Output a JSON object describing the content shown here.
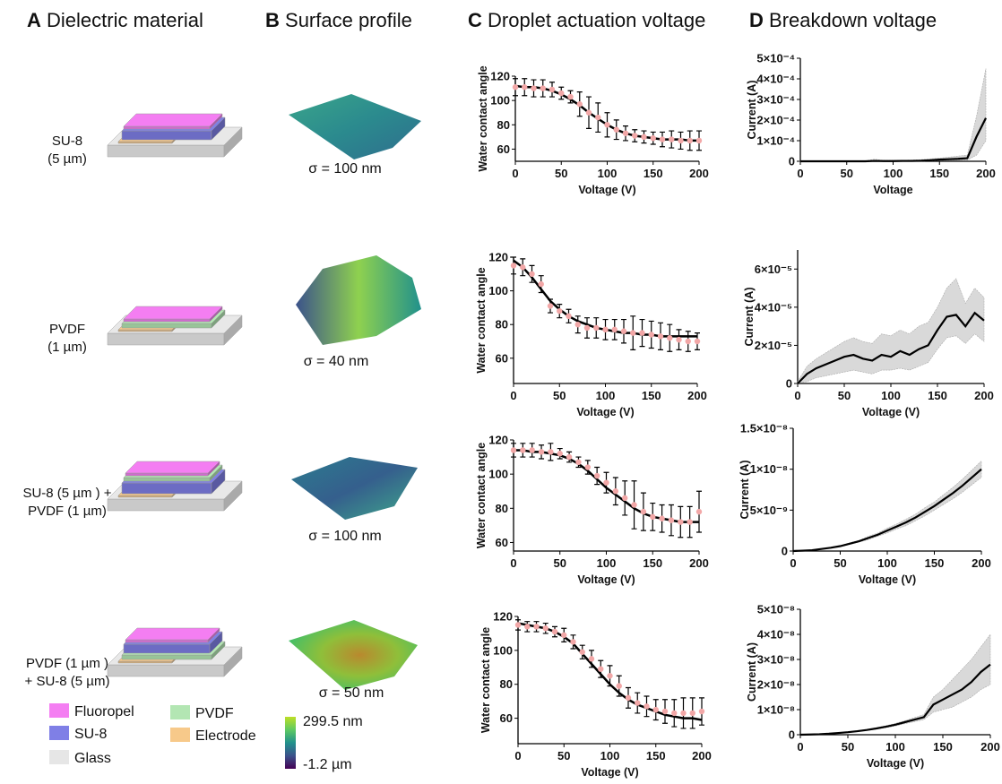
{
  "panels": [
    {
      "letter": "A",
      "title": "Dielectric material"
    },
    {
      "letter": "B",
      "title": "Surface profile"
    },
    {
      "letter": "C",
      "title": "Droplet actuation voltage"
    },
    {
      "letter": "D",
      "title": "Breakdown voltage"
    }
  ],
  "materials": [
    [
      "SU-8",
      "(5 µm)"
    ],
    [
      "PVDF",
      "(1 µm)"
    ],
    [
      "SU-8 (5 µm ) +",
      "PVDF  (1 µm)"
    ],
    [
      "PVDF (1 µm )",
      "+ SU-8 (5 µm)"
    ]
  ],
  "roughness": [
    "σ = 100 nm",
    "σ = 40 nm",
    "σ = 100 nm",
    "σ = 50 nm"
  ],
  "legend": [
    {
      "name": "Fluoropel",
      "color": "#f47ef2"
    },
    {
      "name": "SU-8",
      "color": "#7f7fe6"
    },
    {
      "name": "Glass",
      "color": "#e6e6e6"
    },
    {
      "name": "PVDF",
      "color": "#b3e6b3"
    },
    {
      "name": "Electrode",
      "color": "#f7c98a"
    }
  ],
  "colorbar": {
    "max": "299.5 nm",
    "min": "-1.2 µm"
  },
  "chart_data": [
    {
      "type": "scatter",
      "ylabel": "Water contact angle",
      "xlabel": "Voltage (V)",
      "color": "#f2a7a7",
      "fit_color": "#000000",
      "x": [
        0,
        10,
        20,
        30,
        40,
        50,
        60,
        70,
        80,
        90,
        100,
        110,
        120,
        130,
        140,
        150,
        160,
        170,
        180,
        190,
        200
      ],
      "values": [
        111,
        111,
        110,
        110,
        109,
        106,
        103,
        97,
        90,
        86,
        80,
        76,
        73,
        71,
        70,
        69,
        68,
        68,
        67,
        67,
        67
      ],
      "errors": [
        7,
        7,
        7,
        7,
        6,
        5,
        5,
        10,
        13,
        12,
        10,
        8,
        6,
        5,
        5,
        5,
        6,
        7,
        7,
        8,
        8
      ],
      "fit": [
        112,
        111,
        111,
        110,
        108,
        105,
        101,
        96,
        90,
        85,
        80,
        76,
        73,
        71,
        70,
        69,
        68,
        68,
        68,
        67,
        67
      ],
      "xlim": [
        0,
        200
      ],
      "xticks": [
        0,
        50,
        100,
        150,
        200
      ],
      "ylim": [
        50,
        120
      ],
      "yticks": [
        60,
        80,
        100,
        120
      ]
    },
    {
      "type": "scatter",
      "ylabel": "Water contact angle",
      "xlabel": "Voltage (V)",
      "color": "#f2a7a7",
      "fit_color": "#000000",
      "x": [
        0,
        10,
        20,
        30,
        40,
        50,
        60,
        70,
        80,
        90,
        100,
        110,
        120,
        130,
        140,
        150,
        160,
        170,
        180,
        190,
        200
      ],
      "values": [
        115,
        114,
        110,
        104,
        91,
        88,
        85,
        80,
        78,
        78,
        77,
        77,
        76,
        75,
        75,
        74,
        73,
        72,
        71,
        70,
        70
      ],
      "errors": [
        5,
        5,
        5,
        5,
        4,
        4,
        4,
        5,
        6,
        6,
        6,
        6,
        7,
        10,
        8,
        8,
        8,
        8,
        6,
        6,
        5
      ],
      "fit": [
        118,
        114,
        108,
        101,
        94,
        89,
        85,
        82,
        80,
        78,
        77,
        76,
        75,
        75,
        74,
        74,
        73,
        73,
        73,
        73,
        73
      ],
      "xlim": [
        0,
        200
      ],
      "xticks": [
        0,
        50,
        100,
        150,
        200
      ],
      "ylim": [
        45,
        120
      ],
      "yticks": [
        60,
        80,
        100,
        120
      ]
    },
    {
      "type": "scatter",
      "ylabel": "Water contact angle",
      "xlabel": "Voltage (V)",
      "color": "#f2a7a7",
      "fit_color": "#000000",
      "x": [
        0,
        10,
        20,
        30,
        40,
        50,
        60,
        70,
        80,
        90,
        100,
        110,
        120,
        130,
        140,
        150,
        160,
        170,
        180,
        190,
        200
      ],
      "values": [
        114,
        114,
        114,
        113,
        113,
        112,
        110,
        107,
        104,
        99,
        95,
        90,
        86,
        82,
        78,
        75,
        74,
        73,
        72,
        72,
        78
      ],
      "errors": [
        4,
        4,
        4,
        4,
        5,
        3,
        3,
        3,
        4,
        5,
        6,
        8,
        10,
        14,
        11,
        8,
        8,
        9,
        9,
        9,
        12
      ],
      "fit": [
        114,
        114,
        113,
        113,
        112,
        111,
        109,
        106,
        102,
        97,
        92,
        88,
        84,
        80,
        77,
        75,
        74,
        73,
        72,
        72,
        72
      ],
      "xlim": [
        0,
        200
      ],
      "xticks": [
        0,
        50,
        100,
        150,
        200
      ],
      "ylim": [
        55,
        120
      ],
      "yticks": [
        60,
        80,
        100,
        120
      ]
    },
    {
      "type": "scatter",
      "ylabel": "Water contact angle",
      "xlabel": "Voltage (V)",
      "color": "#f2a7a7",
      "fit_color": "#000000",
      "x": [
        0,
        10,
        20,
        30,
        40,
        50,
        60,
        70,
        80,
        90,
        100,
        110,
        120,
        130,
        140,
        150,
        160,
        170,
        180,
        190,
        200
      ],
      "values": [
        115,
        114,
        114,
        113,
        111,
        109,
        105,
        99,
        95,
        89,
        85,
        79,
        72,
        69,
        67,
        65,
        64,
        63,
        63,
        63,
        64
      ],
      "errors": [
        3,
        3,
        3,
        3,
        3,
        4,
        4,
        4,
        5,
        5,
        6,
        6,
        6,
        6,
        6,
        6,
        7,
        8,
        9,
        9,
        8
      ],
      "fit": [
        116,
        115,
        114,
        113,
        111,
        108,
        104,
        98,
        92,
        86,
        80,
        75,
        71,
        68,
        66,
        64,
        62,
        61,
        60,
        60,
        59
      ],
      "xlim": [
        0,
        200
      ],
      "xticks": [
        0,
        50,
        100,
        150,
        200
      ],
      "ylim": [
        45,
        120
      ],
      "yticks": [
        60,
        80,
        100,
        120
      ]
    },
    {
      "type": "line",
      "ylabel": "Current (A)",
      "xlabel": "Voltage",
      "color": "#000000",
      "band_color": "#d9d9d9",
      "x": [
        0,
        10,
        20,
        30,
        40,
        50,
        60,
        70,
        80,
        90,
        100,
        110,
        120,
        130,
        140,
        150,
        160,
        170,
        180,
        190,
        200
      ],
      "values": [
        0,
        0,
        0,
        0,
        0,
        0,
        0,
        0,
        2e-06,
        1e-06,
        1e-06,
        2e-06,
        2e-06,
        3e-06,
        5e-06,
        8e-06,
        1e-05,
        1.2e-05,
        1.5e-05,
        0.00012,
        0.00021
      ],
      "band_lower": [
        0,
        0,
        0,
        0,
        0,
        0,
        0,
        0,
        0,
        0,
        0,
        0,
        0,
        0,
        2e-06,
        3e-06,
        4e-06,
        5e-06,
        6e-06,
        3e-05,
        0.0001
      ],
      "band_upper": [
        2e-06,
        2e-06,
        2e-06,
        2e-06,
        2e-06,
        2e-06,
        2e-06,
        2e-06,
        1e-05,
        4e-06,
        4e-06,
        5e-06,
        6e-06,
        8e-06,
        1.2e-05,
        1.5e-05,
        2e-05,
        2.5e-05,
        3e-05,
        0.00022,
        0.00045
      ],
      "xlim": [
        0,
        200
      ],
      "xticks": [
        0,
        50,
        100,
        150,
        200
      ],
      "ylim": [
        0,
        0.0005
      ],
      "yticks": [
        0,
        {
          "value": 0.0001,
          "label": "1×10⁻⁴"
        },
        {
          "value": 0.0002,
          "label": "2×10⁻⁴"
        },
        {
          "value": 0.0003,
          "label": "3×10⁻⁴"
        },
        {
          "value": 0.0004,
          "label": "4×10⁻⁴"
        },
        {
          "value": 0.0005,
          "label": "5×10⁻⁴"
        }
      ]
    },
    {
      "type": "line",
      "ylabel": "Current (A)",
      "xlabel": "Voltage (V)",
      "color": "#000000",
      "band_color": "#d9d9d9",
      "x": [
        0,
        10,
        20,
        30,
        40,
        50,
        60,
        70,
        80,
        90,
        100,
        110,
        120,
        130,
        140,
        150,
        160,
        170,
        180,
        190,
        200
      ],
      "values": [
        0,
        5e-06,
        8e-06,
        1e-05,
        1.2e-05,
        1.4e-05,
        1.5e-05,
        1.3e-05,
        1.2e-05,
        1.5e-05,
        1.4e-05,
        1.7e-05,
        1.5e-05,
        1.8e-05,
        2e-05,
        2.8e-05,
        3.5e-05,
        3.6e-05,
        3e-05,
        3.7e-05,
        3.3e-05
      ],
      "band_lower": [
        0,
        1e-06,
        3e-06,
        4e-06,
        5e-06,
        6e-06,
        7e-06,
        6e-06,
        5e-06,
        7e-06,
        7e-06,
        8e-06,
        7e-06,
        9e-06,
        1.1e-05,
        1.8e-05,
        2.4e-05,
        2.5e-05,
        2.1e-05,
        2.6e-05,
        2.2e-05
      ],
      "band_upper": [
        1e-06,
        9e-06,
        1.3e-05,
        1.6e-05,
        1.9e-05,
        2.2e-05,
        2.4e-05,
        2.2e-05,
        2.1e-05,
        2.6e-05,
        2.5e-05,
        2.8e-05,
        2.6e-05,
        3e-05,
        3.2e-05,
        4e-05,
        5e-05,
        5.5e-05,
        4.2e-05,
        5e-05,
        4.5e-05
      ],
      "xlim": [
        0,
        200
      ],
      "xticks": [
        0,
        50,
        100,
        150,
        200
      ],
      "ylim": [
        0,
        7e-05
      ],
      "yticks": [
        0,
        {
          "value": 2e-05,
          "label": "2×10⁻⁵"
        },
        {
          "value": 4e-05,
          "label": "4×10⁻⁵"
        },
        {
          "value": 6e-05,
          "label": "6×10⁻⁵"
        }
      ]
    },
    {
      "type": "line",
      "ylabel": "Current (A)",
      "xlabel": "Voltage (V)",
      "color": "#000000",
      "band_color": "#d9d9d9",
      "x": [
        0,
        10,
        20,
        30,
        40,
        50,
        60,
        70,
        80,
        90,
        100,
        110,
        120,
        130,
        140,
        150,
        160,
        170,
        180,
        190,
        200
      ],
      "values": [
        0,
        5e-11,
        1e-10,
        2.5e-10,
        4e-10,
        6e-10,
        9e-10,
        1.2e-09,
        1.6e-09,
        2e-09,
        2.5e-09,
        3e-09,
        3.5e-09,
        4.1e-09,
        4.8e-09,
        5.5e-09,
        6.3e-09,
        7.1e-09,
        8e-09,
        9e-09,
        1e-08
      ],
      "band_lower": [
        0,
        4e-11,
        9e-11,
        2.2e-10,
        3.6e-10,
        5.4e-10,
        8e-10,
        1.1e-09,
        1.4e-09,
        1.8e-09,
        2.2e-09,
        2.7e-09,
        3.1e-09,
        3.7e-09,
        4.3e-09,
        5e-09,
        5.7e-09,
        6.4e-09,
        7.2e-09,
        8.1e-09,
        9e-09
      ],
      "band_upper": [
        0,
        6e-11,
        1.1e-10,
        2.8e-10,
        4.4e-10,
        6.6e-10,
        1e-09,
        1.3e-09,
        1.8e-09,
        2.2e-09,
        2.8e-09,
        3.3e-09,
        3.9e-09,
        4.5e-09,
        5.3e-09,
        6e-09,
        6.9e-09,
        7.8e-09,
        8.8e-09,
        9.9e-09,
        1.1e-08
      ],
      "xlim": [
        0,
        200
      ],
      "xticks": [
        0,
        50,
        100,
        150,
        200
      ],
      "ylim": [
        0,
        1.5e-08
      ],
      "yticks": [
        0,
        {
          "value": 5e-09,
          "label": "5×10⁻⁹"
        },
        {
          "value": 1e-08,
          "label": "1×10⁻⁸"
        },
        {
          "value": 1.5e-08,
          "label": "1.5×10⁻⁸"
        }
      ]
    },
    {
      "type": "line",
      "ylabel": "Current (A)",
      "xlabel": "Voltage (V)",
      "color": "#000000",
      "band_color": "#d9d9d9",
      "x": [
        0,
        10,
        20,
        30,
        40,
        50,
        60,
        70,
        80,
        90,
        100,
        110,
        120,
        130,
        140,
        150,
        160,
        170,
        180,
        190,
        200
      ],
      "values": [
        0,
        1e-10,
        2e-10,
        4e-10,
        7e-10,
        1e-09,
        1.4e-09,
        1.9e-09,
        2.5e-09,
        3.2e-09,
        4e-09,
        5e-09,
        6e-09,
        7e-09,
        1.2e-08,
        1.4e-08,
        1.6e-08,
        1.8e-08,
        2.1e-08,
        2.5e-08,
        2.8e-08
      ],
      "band_lower": [
        0,
        1e-10,
        2e-10,
        3e-10,
        6e-10,
        9e-10,
        1.2e-09,
        1.7e-09,
        2.2e-09,
        2.8e-09,
        3.5e-09,
        4.4e-09,
        5.2e-09,
        6e-09,
        9e-09,
        1e-08,
        1.1e-08,
        1.3e-08,
        1.5e-08,
        1.8e-08,
        2e-08
      ],
      "band_upper": [
        0,
        1e-10,
        2e-10,
        5e-10,
        8e-10,
        1.1e-09,
        1.6e-09,
        2.1e-09,
        2.8e-09,
        3.6e-09,
        4.5e-09,
        5.6e-09,
        6.8e-09,
        8e-09,
        1.5e-08,
        1.8e-08,
        2.2e-08,
        2.6e-08,
        3e-08,
        3.5e-08,
        4e-08
      ],
      "xlim": [
        0,
        200
      ],
      "xticks": [
        0,
        50,
        100,
        150,
        200
      ],
      "ylim": [
        0,
        5e-08
      ],
      "yticks": [
        0,
        {
          "value": 1e-08,
          "label": "1×10⁻⁸"
        },
        {
          "value": 2e-08,
          "label": "2×10⁻⁸"
        },
        {
          "value": 3e-08,
          "label": "3×10⁻⁸"
        },
        {
          "value": 4e-08,
          "label": "4×10⁻⁸"
        },
        {
          "value": 5e-08,
          "label": "5×10⁻⁸"
        }
      ]
    }
  ]
}
